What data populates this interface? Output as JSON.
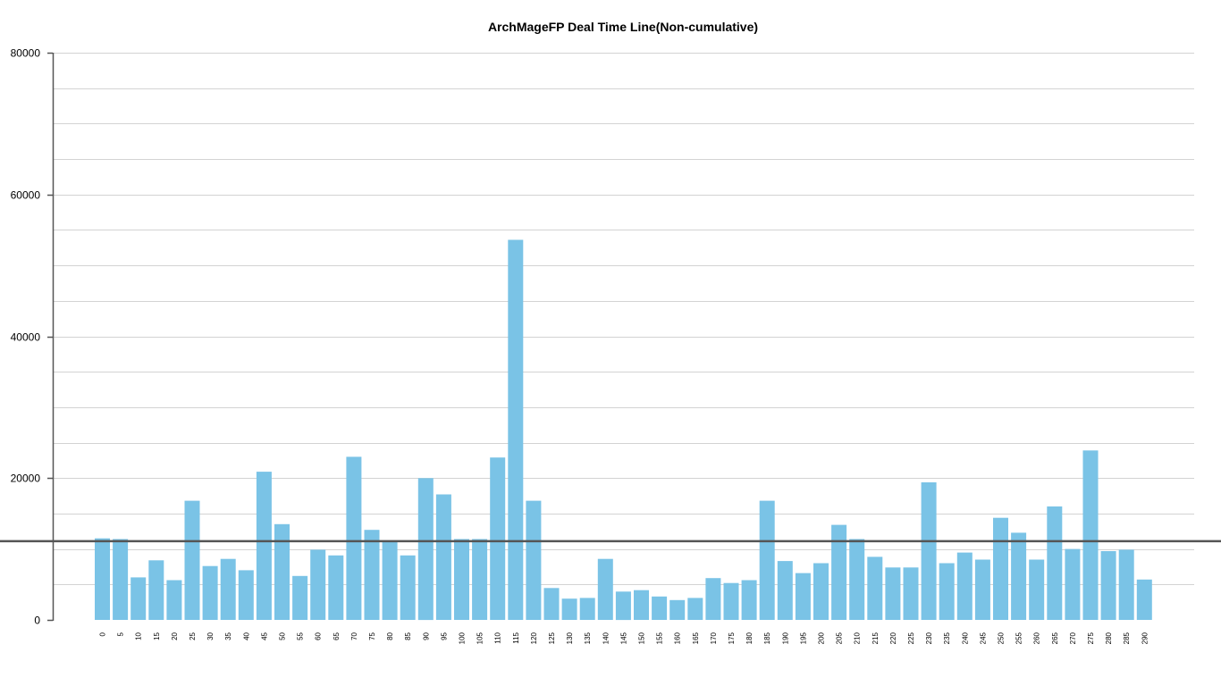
{
  "chart_data": {
    "type": "bar",
    "title": "ArchMageFP Deal Time Line(Non-cumulative)",
    "xlabel": "",
    "ylabel": "",
    "ylim": [
      0,
      80000
    ],
    "y_ticks": [
      "0",
      "20000",
      "40000",
      "60000",
      "80000"
    ],
    "y_tick_values": [
      0,
      20000,
      40000,
      60000,
      80000
    ],
    "grid": true,
    "bar_color": "#7ac3e6",
    "reference_line": {
      "value": 11100,
      "color": "#555555"
    },
    "categories": [
      "0",
      "5",
      "10",
      "15",
      "20",
      "25",
      "30",
      "35",
      "40",
      "45",
      "50",
      "55",
      "60",
      "65",
      "70",
      "75",
      "80",
      "85",
      "90",
      "95",
      "100",
      "105",
      "110",
      "115",
      "120",
      "125",
      "130",
      "135",
      "140",
      "145",
      "150",
      "155",
      "160",
      "165",
      "170",
      "175",
      "180",
      "185",
      "190",
      "195",
      "200",
      "205",
      "210",
      "215",
      "220",
      "225",
      "230",
      "235",
      "240",
      "245",
      "250",
      "255",
      "260",
      "265",
      "270",
      "275",
      "280",
      "285",
      "290"
    ],
    "values": [
      11500,
      11400,
      6000,
      8400,
      5600,
      16800,
      7600,
      8600,
      7000,
      20900,
      13500,
      6200,
      9900,
      9100,
      23000,
      12700,
      11100,
      9100,
      20000,
      17700,
      11400,
      11400,
      22900,
      53600,
      16800,
      4500,
      3000,
      3100,
      8600,
      4000,
      4200,
      3300,
      2800,
      3100,
      5900,
      5200,
      5600,
      16800,
      8300,
      6600,
      8000,
      13400,
      11400,
      8900,
      7400,
      7400,
      19400,
      8000,
      9500,
      8500,
      14400,
      12300,
      8500,
      16000,
      10000,
      23900,
      9700,
      9900,
      5700
    ]
  }
}
